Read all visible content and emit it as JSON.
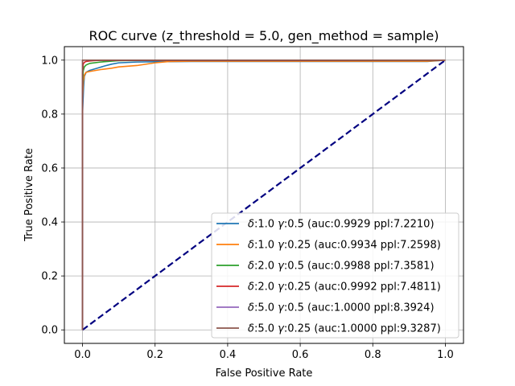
{
  "chart_data": {
    "type": "line",
    "title": "ROC curve (z_threshold = 5.0, gen_method = sample)",
    "xlabel": "False Positive Rate",
    "ylabel": "True Positive Rate",
    "xlim": [
      -0.05,
      1.05
    ],
    "ylim": [
      -0.05,
      1.05
    ],
    "xticks": [
      0.0,
      0.2,
      0.4,
      0.6,
      0.8,
      1.0
    ],
    "yticks": [
      0.0,
      0.2,
      0.4,
      0.6,
      0.8,
      1.0
    ],
    "xtick_labels": [
      "0.0",
      "0.2",
      "0.4",
      "0.6",
      "0.8",
      "1.0"
    ],
    "ytick_labels": [
      "0.0",
      "0.2",
      "0.4",
      "0.6",
      "0.8",
      "1.0"
    ],
    "grid": true,
    "legend_position": "lower-right",
    "baseline": {
      "x": [
        0,
        1
      ],
      "y": [
        0,
        1
      ],
      "color": "#000080",
      "style": "dashed"
    },
    "series": [
      {
        "name": "δ:1.0 γ:0.5 (auc:0.9929 ppl:7.2210)",
        "label_delta": "1.0",
        "label_gamma": "0.5",
        "label_rest": "(auc:0.9929 ppl:7.2210)",
        "color": "#1f77b4",
        "x": [
          0,
          0.0,
          0.003,
          0.005,
          0.01,
          0.02,
          0.04,
          0.06,
          0.08,
          0.1,
          0.15,
          0.2,
          0.3,
          0.5,
          0.8,
          0.95,
          1.0
        ],
        "y": [
          0,
          0.8,
          0.9,
          0.94,
          0.955,
          0.962,
          0.97,
          0.978,
          0.985,
          0.99,
          0.993,
          0.994,
          0.995,
          0.995,
          0.995,
          0.995,
          1.0
        ]
      },
      {
        "name": "δ:1.0 γ:0.25 (auc:0.9934 ppl:7.2598)",
        "label_delta": "1.0",
        "label_gamma": "0.25",
        "label_rest": "(auc:0.9934 ppl:7.2598)",
        "color": "#ff7f0e",
        "x": [
          0,
          0.0,
          0.002,
          0.005,
          0.01,
          0.02,
          0.05,
          0.08,
          0.1,
          0.15,
          0.2,
          0.24,
          0.3,
          0.5,
          0.8,
          0.95,
          1.0
        ],
        "y": [
          0,
          0.85,
          0.92,
          0.945,
          0.955,
          0.958,
          0.965,
          0.97,
          0.975,
          0.98,
          0.99,
          0.995,
          0.996,
          0.996,
          0.996,
          0.996,
          1.0
        ]
      },
      {
        "name": "δ:2.0 γ:0.5 (auc:0.9988 ppl:7.3581)",
        "label_delta": "2.0",
        "label_gamma": "0.5",
        "label_rest": "(auc:0.9988 ppl:7.3581)",
        "color": "#2ca02c",
        "x": [
          0,
          0.0,
          0.002,
          0.005,
          0.01,
          0.02,
          0.05,
          0.08,
          0.1,
          0.2,
          0.5,
          1.0
        ],
        "y": [
          0,
          0.9,
          0.96,
          0.975,
          0.982,
          0.988,
          0.993,
          0.996,
          0.998,
          0.999,
          0.999,
          1.0
        ]
      },
      {
        "name": "δ:2.0 γ:0.25 (auc:0.9992 ppl:7.4811)",
        "label_delta": "2.0",
        "label_gamma": "0.25",
        "label_rest": "(auc:0.9992 ppl:7.4811)",
        "color": "#d62728",
        "x": [
          0,
          0.0,
          0.002,
          0.005,
          0.01,
          0.02,
          0.03,
          0.05,
          0.1,
          0.5,
          1.0
        ],
        "y": [
          0,
          0.95,
          0.985,
          0.992,
          0.995,
          0.997,
          0.998,
          0.999,
          0.999,
          0.999,
          1.0
        ]
      },
      {
        "name": "δ:5.0 γ:0.5 (auc:1.0000 ppl:8.3924)",
        "label_delta": "5.0",
        "label_gamma": "0.5",
        "label_rest": "(auc:1.0000 ppl:8.3924)",
        "color": "#9467bd",
        "x": [
          0,
          0.0,
          1.0
        ],
        "y": [
          0,
          1.0,
          1.0
        ]
      },
      {
        "name": "δ:5.0 γ:0.25 (auc:1.0000 ppl:9.3287)",
        "label_delta": "5.0",
        "label_gamma": "0.25",
        "label_rest": "(auc:1.0000 ppl:9.3287)",
        "color": "#8c564b",
        "x": [
          0,
          0.0,
          1.0
        ],
        "y": [
          0,
          1.0,
          1.0
        ]
      }
    ]
  }
}
